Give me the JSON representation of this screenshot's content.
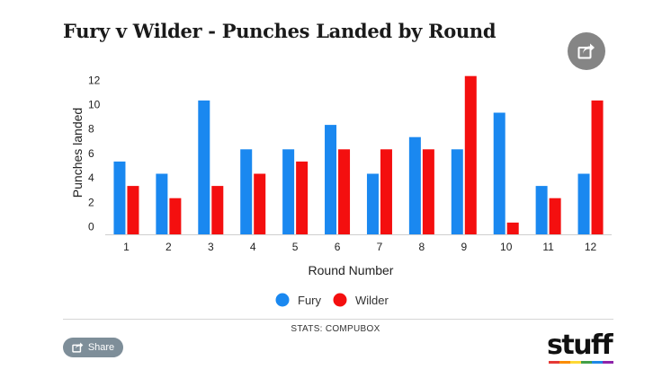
{
  "title": "Fury v Wilder - Punches Landed by Round",
  "source": "STATS: COMPUBOX",
  "share_label": "Share",
  "logo_text": "stuff",
  "icons": {
    "share_circle": "share-icon",
    "share_pill": "share-icon"
  },
  "colors": {
    "fury": "#1a88f0",
    "wilder": "#f40f0f",
    "share_circle": "#858585",
    "share_pill": "#7e8e99",
    "logo_stripe": [
      "#e53935",
      "#fb8c00",
      "#fdd835",
      "#43a047",
      "#1e88e5",
      "#8e24aa"
    ]
  },
  "chart_data": {
    "type": "bar",
    "categories": [
      "1",
      "2",
      "3",
      "4",
      "5",
      "6",
      "7",
      "8",
      "9",
      "10",
      "11",
      "12"
    ],
    "series": [
      {
        "name": "Fury",
        "values": [
          6,
          5,
          11,
          7,
          7,
          9,
          5,
          8,
          7,
          10,
          4,
          5
        ]
      },
      {
        "name": "Wilder",
        "values": [
          4,
          3,
          4,
          5,
          6,
          7,
          7,
          7,
          13,
          1,
          3,
          11
        ]
      }
    ],
    "xlabel": "Round Number",
    "ylabel": "Punches landed",
    "yticks": [
      0,
      2,
      4,
      6,
      8,
      10,
      12
    ],
    "ylim": [
      0,
      13
    ],
    "grid": false,
    "legend": "bottom-center"
  }
}
